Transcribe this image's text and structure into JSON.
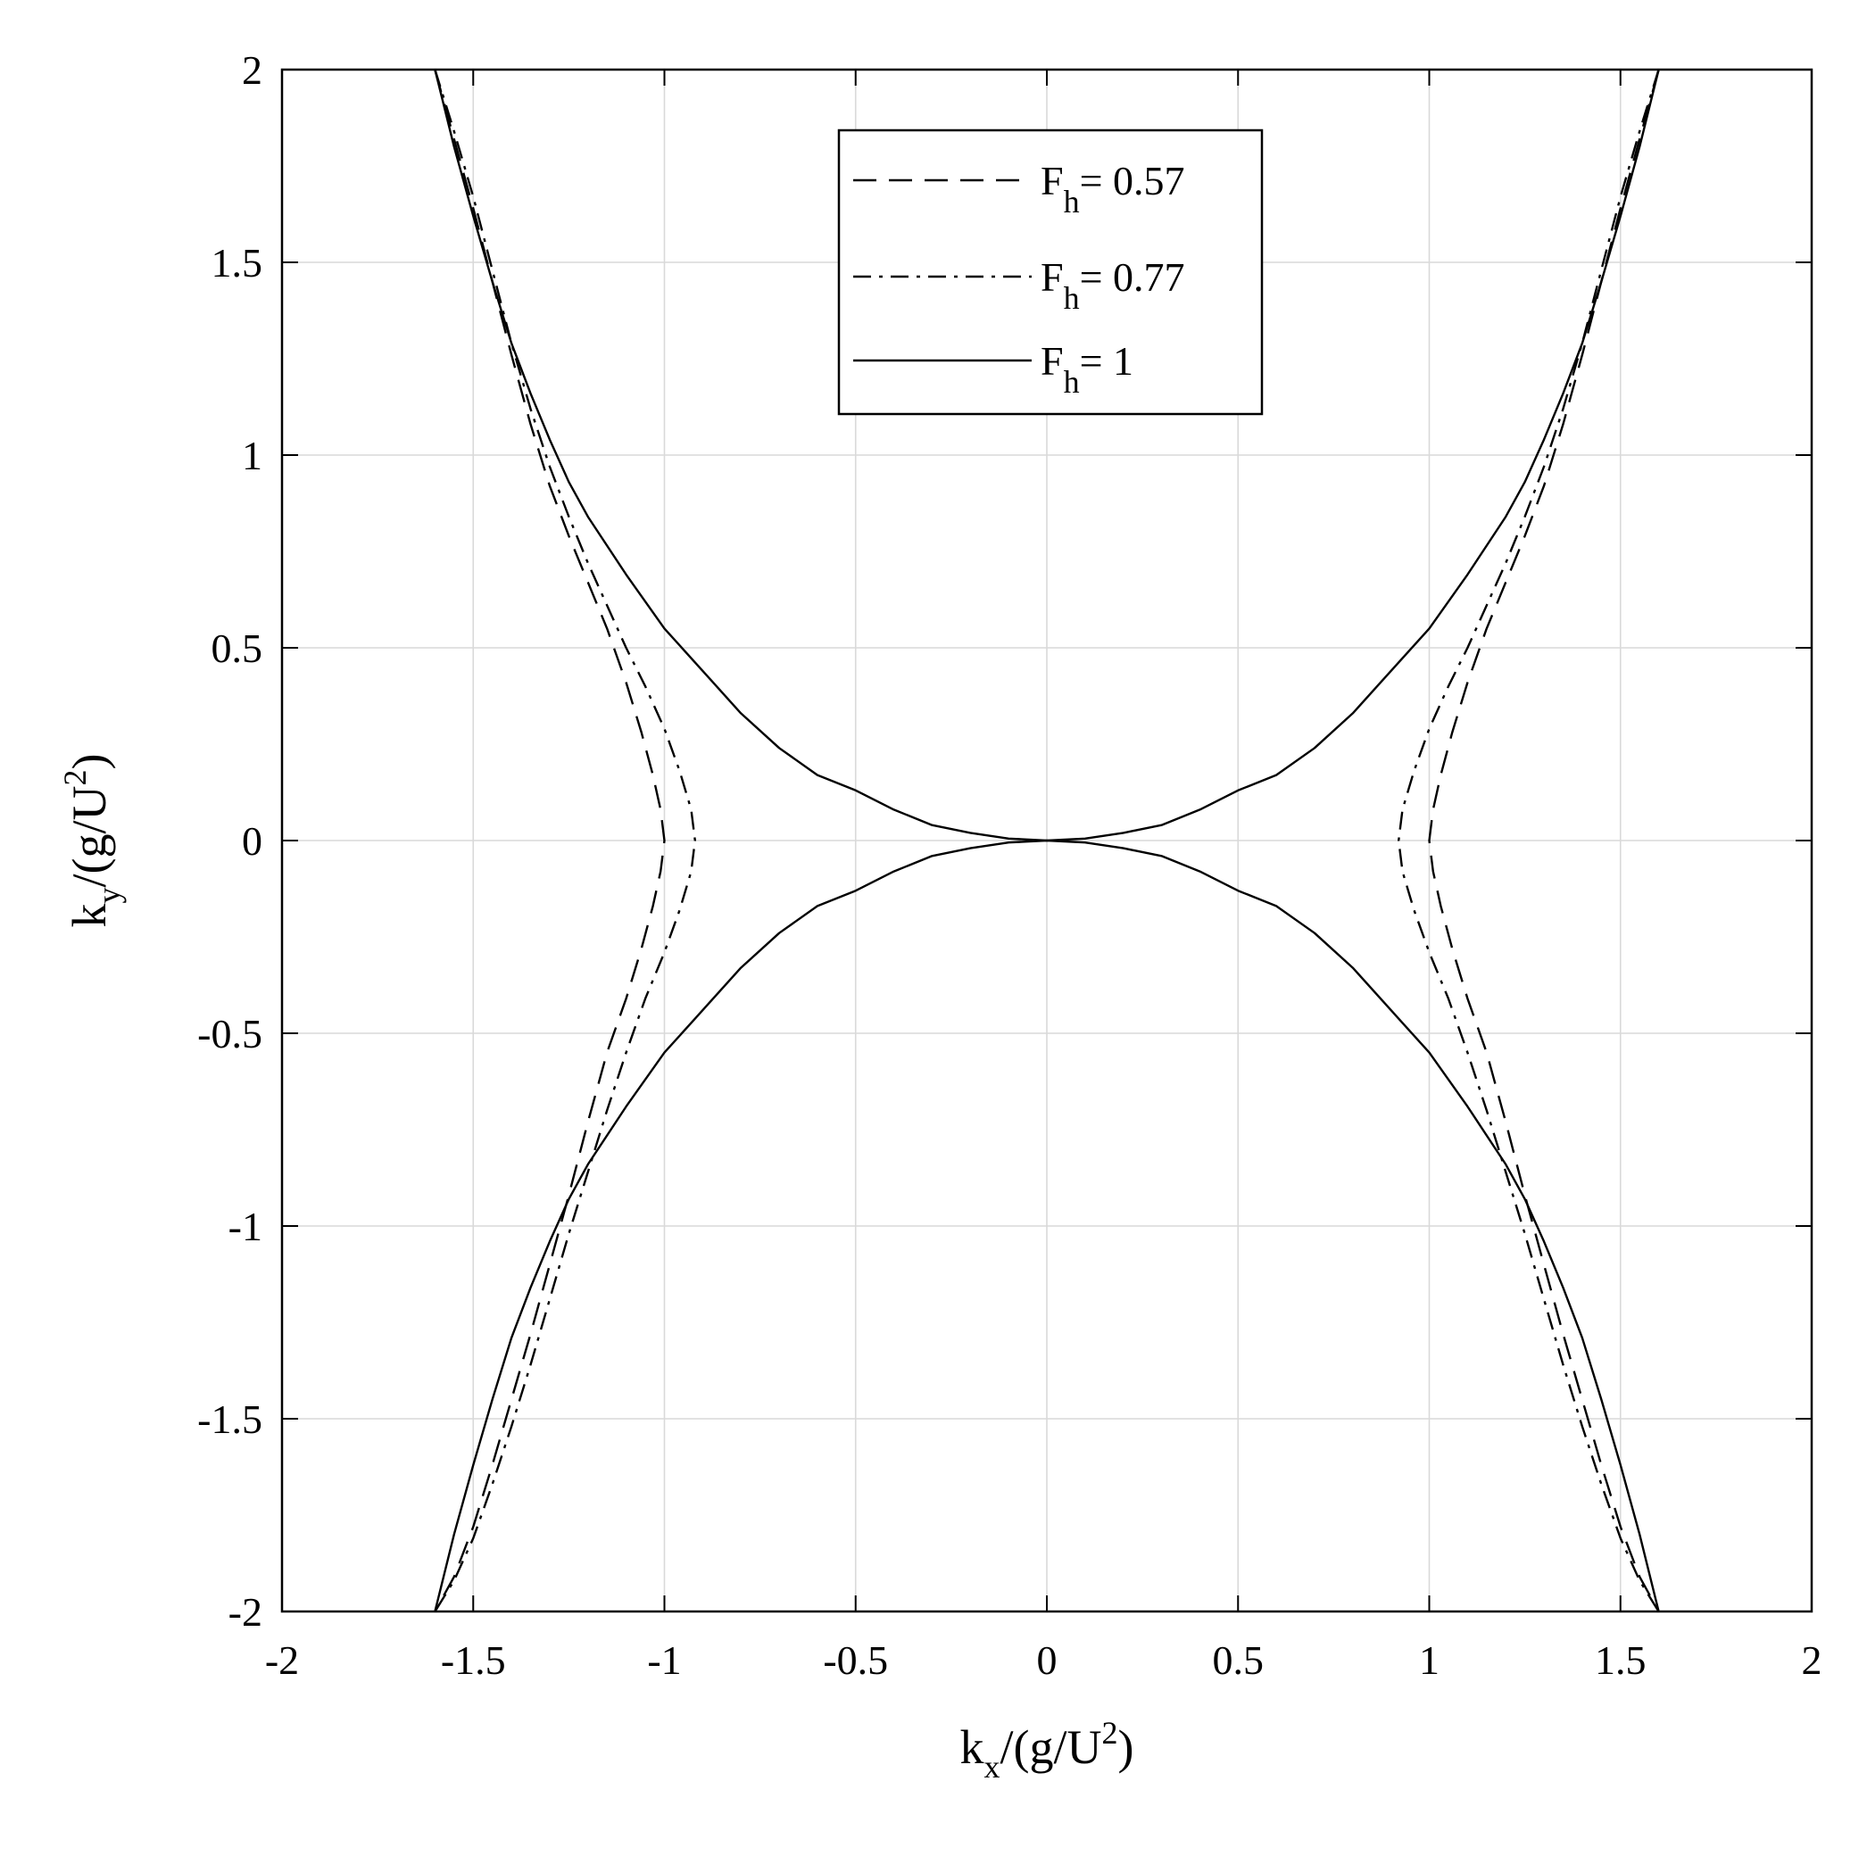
{
  "chart_data": {
    "type": "line",
    "xlabel": {
      "base": "k",
      "sub": "x",
      "rest": "/(g/U",
      "sup": "2",
      "close": ")"
    },
    "ylabel": {
      "base": "k",
      "sub": "y",
      "rest": "/(g/U",
      "sup": "2",
      "close": ")"
    },
    "xlim": [
      -2,
      2
    ],
    "ylim": [
      -2,
      2
    ],
    "xticks": [
      -2,
      -1.5,
      -1,
      -0.5,
      0,
      0.5,
      1,
      1.5,
      2
    ],
    "yticks": [
      -2,
      -1.5,
      -1,
      -0.5,
      0,
      0.5,
      1,
      1.5,
      2
    ],
    "xtick_labels": [
      "-2",
      "-1.5",
      "-1",
      "-0.5",
      "0",
      "0.5",
      "1",
      "1.5",
      "2"
    ],
    "ytick_labels": [
      "-2",
      "-1.5",
      "-1",
      "-0.5",
      "0",
      "0.5",
      "1",
      "1.5",
      "2"
    ],
    "grid": true,
    "legend_position": "top-center",
    "legend_symbol": "F",
    "legend_subscript": "h",
    "series": [
      {
        "name": "= 0.57",
        "line_style": "dashed",
        "color": "#000000",
        "branches": [
          {
            "x": [
              -1.6,
              -1.55,
              -1.5,
              -1.45,
              -1.4,
              -1.35,
              -1.3,
              -1.25,
              -1.2,
              -1.15,
              -1.1,
              -1.06,
              -1.03,
              -1.01,
              -1.0,
              -1.01,
              -1.03,
              -1.06,
              -1.1,
              -1.15,
              -1.2,
              -1.25,
              -1.3,
              -1.35,
              -1.4,
              -1.45,
              -1.5,
              -1.55,
              -1.6
            ],
            "y": [
              2.0,
              1.82,
              1.64,
              1.45,
              1.26,
              1.08,
              0.92,
              0.79,
              0.67,
              0.55,
              0.41,
              0.28,
              0.17,
              0.08,
              0.0,
              -0.08,
              -0.17,
              -0.28,
              -0.41,
              -0.55,
              -0.73,
              -0.92,
              -1.1,
              -1.28,
              -1.45,
              -1.62,
              -1.78,
              -1.91,
              -2.0
            ]
          },
          {
            "x": [
              1.6,
              1.55,
              1.5,
              1.45,
              1.4,
              1.35,
              1.3,
              1.25,
              1.2,
              1.15,
              1.1,
              1.06,
              1.03,
              1.01,
              1.0,
              1.01,
              1.03,
              1.06,
              1.1,
              1.15,
              1.2,
              1.25,
              1.3,
              1.35,
              1.4,
              1.45,
              1.5,
              1.55,
              1.6
            ],
            "y": [
              2.0,
              1.82,
              1.64,
              1.45,
              1.26,
              1.08,
              0.92,
              0.79,
              0.67,
              0.55,
              0.41,
              0.28,
              0.17,
              0.08,
              0.0,
              -0.08,
              -0.17,
              -0.28,
              -0.41,
              -0.55,
              -0.73,
              -0.92,
              -1.1,
              -1.28,
              -1.45,
              -1.62,
              -1.78,
              -1.91,
              -2.0
            ]
          }
        ]
      },
      {
        "name": "= 0.77",
        "line_style": "dashdot",
        "color": "#000000",
        "branches": [
          {
            "x": [
              -1.6,
              -1.55,
              -1.5,
              -1.45,
              -1.4,
              -1.35,
              -1.3,
              -1.25,
              -1.2,
              -1.15,
              -1.1,
              -1.05,
              -1.0,
              -0.96,
              -0.93,
              -0.92,
              -0.93,
              -0.96,
              -1.0,
              -1.05,
              -1.1,
              -1.15,
              -1.2,
              -1.25,
              -1.3,
              -1.35,
              -1.4,
              -1.45,
              -1.5,
              -1.55,
              -1.6
            ],
            "y": [
              2.0,
              1.84,
              1.67,
              1.48,
              1.29,
              1.12,
              0.97,
              0.84,
              0.72,
              0.61,
              0.5,
              0.4,
              0.29,
              0.18,
              0.08,
              0.0,
              -0.08,
              -0.18,
              -0.29,
              -0.41,
              -0.55,
              -0.7,
              -0.86,
              -1.02,
              -1.19,
              -1.36,
              -1.52,
              -1.67,
              -1.81,
              -1.92,
              -2.0
            ]
          },
          {
            "x": [
              1.6,
              1.55,
              1.5,
              1.45,
              1.4,
              1.35,
              1.3,
              1.25,
              1.2,
              1.15,
              1.1,
              1.05,
              1.0,
              0.96,
              0.93,
              0.92,
              0.93,
              0.96,
              1.0,
              1.05,
              1.1,
              1.15,
              1.2,
              1.25,
              1.3,
              1.35,
              1.4,
              1.45,
              1.5,
              1.55,
              1.6
            ],
            "y": [
              2.0,
              1.84,
              1.67,
              1.48,
              1.29,
              1.12,
              0.97,
              0.84,
              0.72,
              0.61,
              0.5,
              0.4,
              0.29,
              0.18,
              0.08,
              0.0,
              -0.08,
              -0.18,
              -0.29,
              -0.41,
              -0.55,
              -0.7,
              -0.86,
              -1.02,
              -1.19,
              -1.36,
              -1.52,
              -1.67,
              -1.81,
              -1.92,
              -2.0
            ]
          }
        ]
      },
      {
        "name": "= 1",
        "line_style": "solid",
        "color": "#000000",
        "branches": [
          {
            "x": [
              -1.6,
              -1.55,
              -1.5,
              -1.45,
              -1.4,
              -1.35,
              -1.3,
              -1.25,
              -1.2,
              -1.1,
              -1.0,
              -0.9,
              -0.8,
              -0.7,
              -0.6,
              -0.5,
              -0.4,
              -0.3,
              -0.2,
              -0.1,
              0.0,
              0.1,
              0.2,
              0.3,
              0.4,
              0.5,
              0.6,
              0.7,
              0.8,
              0.9,
              1.0,
              1.1,
              1.2,
              1.25,
              1.3,
              1.35,
              1.4,
              1.45,
              1.5,
              1.55,
              1.6
            ],
            "y": [
              2.0,
              1.8,
              1.62,
              1.45,
              1.29,
              1.16,
              1.04,
              0.93,
              0.84,
              0.69,
              0.55,
              0.44,
              0.33,
              0.24,
              0.17,
              0.13,
              0.08,
              0.04,
              0.02,
              0.005,
              0.0,
              0.005,
              0.02,
              0.04,
              0.08,
              0.13,
              0.17,
              0.24,
              0.33,
              0.44,
              0.55,
              0.69,
              0.84,
              0.93,
              1.04,
              1.16,
              1.29,
              1.45,
              1.62,
              1.8,
              2.0
            ]
          },
          {
            "x": [
              -1.6,
              -1.55,
              -1.5,
              -1.45,
              -1.4,
              -1.35,
              -1.3,
              -1.25,
              -1.2,
              -1.1,
              -1.0,
              -0.9,
              -0.8,
              -0.7,
              -0.6,
              -0.5,
              -0.4,
              -0.3,
              -0.2,
              -0.1,
              0.0,
              0.1,
              0.2,
              0.3,
              0.4,
              0.5,
              0.6,
              0.7,
              0.8,
              0.9,
              1.0,
              1.1,
              1.2,
              1.25,
              1.3,
              1.35,
              1.4,
              1.45,
              1.5,
              1.55,
              1.6
            ],
            "y": [
              -2.0,
              -1.8,
              -1.62,
              -1.45,
              -1.29,
              -1.16,
              -1.04,
              -0.93,
              -0.84,
              -0.69,
              -0.55,
              -0.44,
              -0.33,
              -0.24,
              -0.17,
              -0.13,
              -0.08,
              -0.04,
              -0.02,
              -0.005,
              0.0,
              -0.005,
              -0.02,
              -0.04,
              -0.08,
              -0.13,
              -0.17,
              -0.24,
              -0.33,
              -0.44,
              -0.55,
              -0.69,
              -0.84,
              -0.93,
              -1.04,
              -1.16,
              -1.29,
              -1.45,
              -1.62,
              -1.8,
              -2.0
            ]
          }
        ]
      }
    ]
  }
}
